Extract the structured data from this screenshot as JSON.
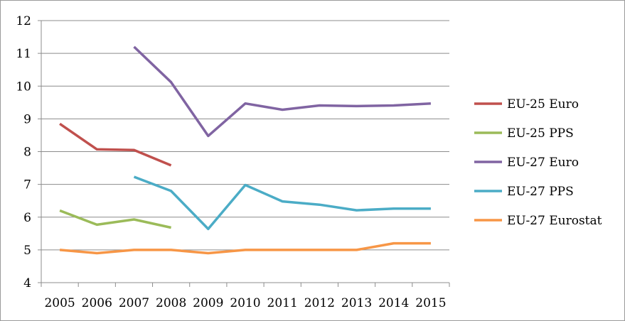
{
  "chart_data": {
    "type": "line",
    "title": "",
    "xlabel": "",
    "ylabel": "",
    "categories": [
      "2005",
      "2006",
      "2007",
      "2008",
      "2009",
      "2010",
      "2011",
      "2012",
      "2013",
      "2014",
      "2015"
    ],
    "ylim": [
      4,
      12
    ],
    "yticks": [
      "4",
      "5",
      "6",
      "7",
      "8",
      "9",
      "10",
      "11",
      "12"
    ],
    "grid": "horizontal",
    "legend_position": "right",
    "series": [
      {
        "name": "EU-25 Euro",
        "color": "#c0504d",
        "values": [
          8.85,
          8.07,
          8.05,
          7.58,
          null,
          null,
          null,
          null,
          null,
          null,
          null
        ]
      },
      {
        "name": "EU-25 PPS",
        "color": "#9bbb59",
        "values": [
          6.2,
          5.77,
          5.93,
          5.68,
          null,
          null,
          null,
          null,
          null,
          null,
          null
        ]
      },
      {
        "name": "EU-27 Euro",
        "color": "#8064a2",
        "values": [
          null,
          null,
          11.2,
          10.12,
          8.48,
          9.47,
          9.28,
          9.41,
          9.39,
          9.41,
          9.47
        ]
      },
      {
        "name": "EU-27 PPS",
        "color": "#4bacc6",
        "values": [
          null,
          null,
          7.23,
          6.8,
          5.64,
          6.98,
          6.48,
          6.38,
          6.21,
          6.26,
          6.26
        ]
      },
      {
        "name": "EU-27 Eurostat",
        "color": "#f79646",
        "values": [
          5.0,
          4.9,
          5.0,
          5.0,
          4.9,
          5.0,
          5.0,
          5.0,
          5.0,
          5.2,
          5.2
        ]
      }
    ]
  }
}
